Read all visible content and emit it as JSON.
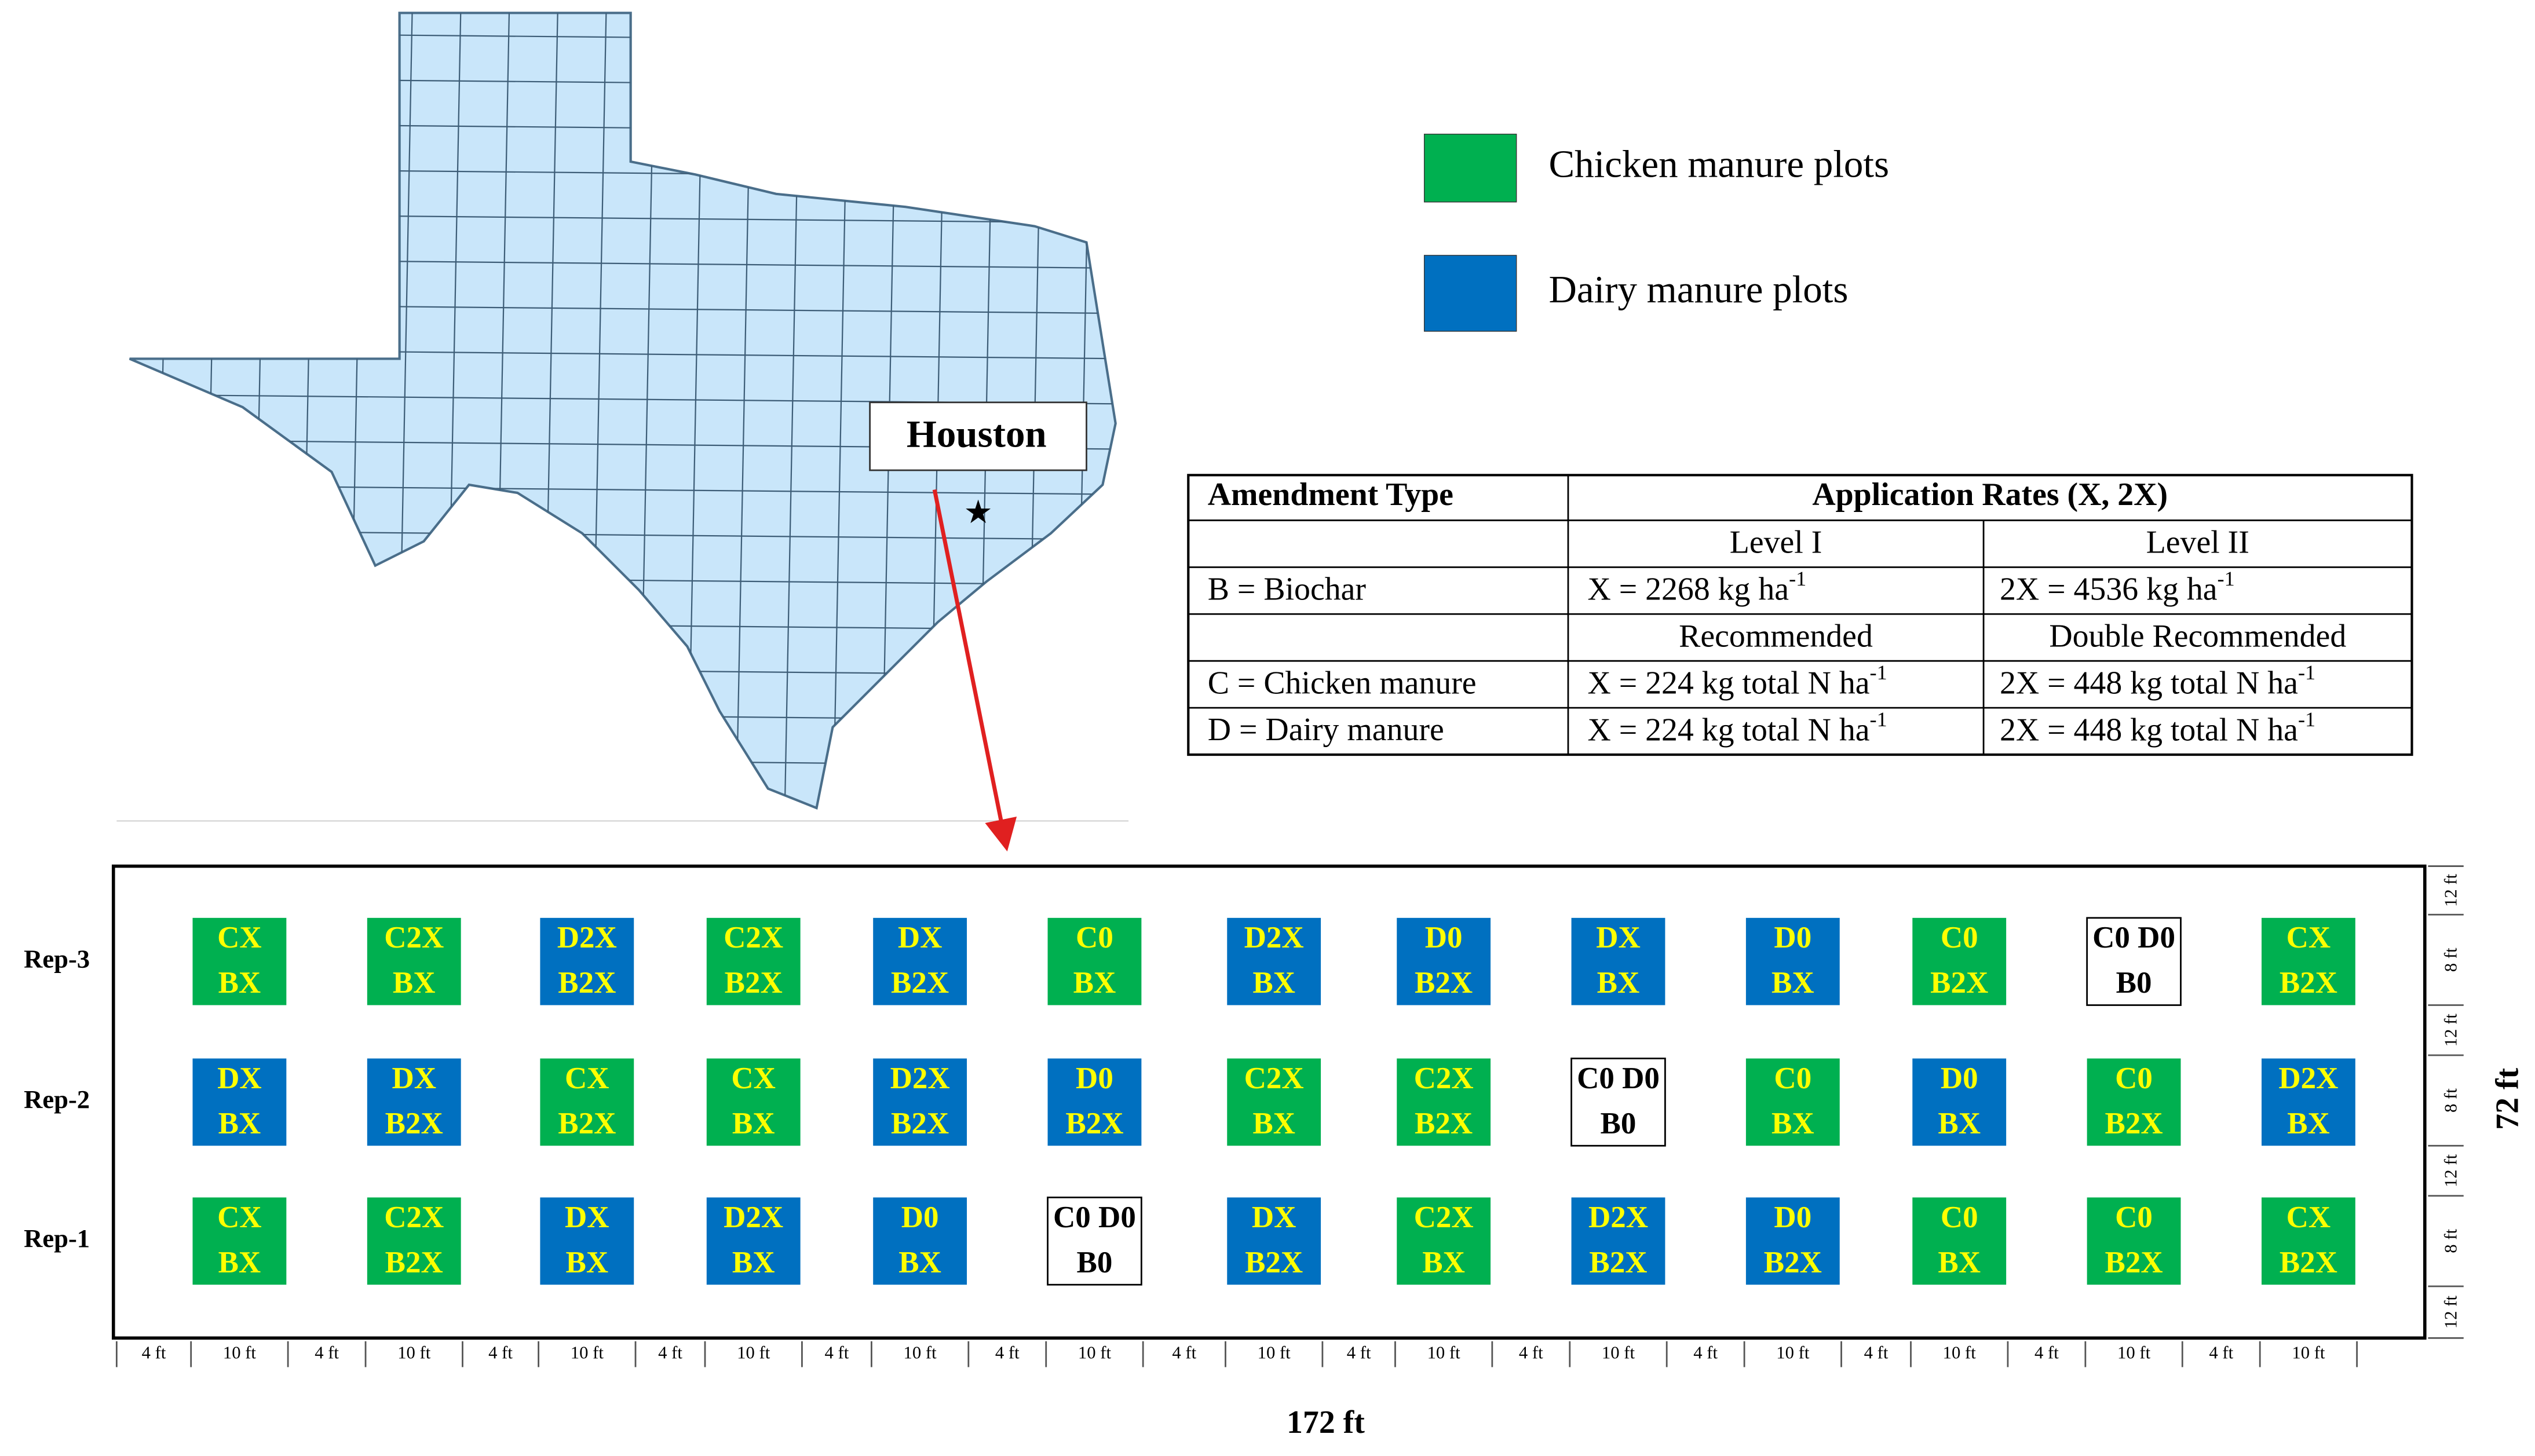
{
  "map": {
    "label": "Houston"
  },
  "legend": [
    {
      "label": "Chicken manure plots",
      "color": "#00b050"
    },
    {
      "label": "Dairy manure plots",
      "color": "#0070c0"
    }
  ],
  "table": {
    "header": [
      "Amendment Type",
      "Application Rates (X, 2X)"
    ],
    "rows": [
      {
        "level": [
          "Level I",
          "Level II"
        ]
      },
      {
        "amendment": "B = Biochar",
        "rates": [
          {
            "text": "X = 2268 kg ha",
            "sup": "-1"
          },
          {
            "text": "2X = 4536 kg ha",
            "sup": "-1"
          }
        ]
      },
      {
        "level": [
          "Recommended",
          "Double Recommended"
        ]
      },
      {
        "amendment": "C = Chicken manure",
        "rates": [
          {
            "text": "X = 224 kg total N ha",
            "sup": "-1"
          },
          {
            "text": "2X = 448 kg total N ha",
            "sup": "-1"
          }
        ]
      },
      {
        "amendment": "D = Dairy manure",
        "rates": [
          {
            "text": "X = 224 kg total N ha",
            "sup": "-1"
          },
          {
            "text": "2X = 448 kg total N ha",
            "sup": "-1"
          }
        ]
      }
    ]
  },
  "field": {
    "reps": [
      {
        "label": "Rep-3",
        "plots": [
          {
            "lines": [
              "CX",
              "BX"
            ],
            "kind": "chicken"
          },
          {
            "lines": [
              "C2X",
              "BX"
            ],
            "kind": "chicken"
          },
          {
            "lines": [
              "D2X",
              "B2X"
            ],
            "kind": "dairy"
          },
          {
            "lines": [
              "C2X",
              "B2X"
            ],
            "kind": "chicken"
          },
          {
            "lines": [
              "DX",
              "B2X"
            ],
            "kind": "dairy"
          },
          {
            "lines": [
              "C0",
              "BX"
            ],
            "kind": "chicken"
          },
          {
            "lines": [
              "D2X",
              "BX"
            ],
            "kind": "dairy"
          },
          {
            "lines": [
              "D0",
              "B2X"
            ],
            "kind": "dairy"
          },
          {
            "lines": [
              "DX",
              "BX"
            ],
            "kind": "dairy"
          },
          {
            "lines": [
              "D0",
              "BX"
            ],
            "kind": "dairy"
          },
          {
            "lines": [
              "C0",
              "B2X"
            ],
            "kind": "chicken"
          },
          {
            "lines": [
              "C0 D0",
              "B0"
            ],
            "kind": "control"
          },
          {
            "lines": [
              "CX",
              "B2X"
            ],
            "kind": "chicken"
          }
        ]
      },
      {
        "label": "Rep-2",
        "plots": [
          {
            "lines": [
              "DX",
              "BX"
            ],
            "kind": "dairy"
          },
          {
            "lines": [
              "DX",
              "B2X"
            ],
            "kind": "dairy"
          },
          {
            "lines": [
              "CX",
              "B2X"
            ],
            "kind": "chicken"
          },
          {
            "lines": [
              "CX",
              "BX"
            ],
            "kind": "chicken"
          },
          {
            "lines": [
              "D2X",
              "B2X"
            ],
            "kind": "dairy"
          },
          {
            "lines": [
              "D0",
              "B2X"
            ],
            "kind": "dairy"
          },
          {
            "lines": [
              "C2X",
              "BX"
            ],
            "kind": "chicken"
          },
          {
            "lines": [
              "C2X",
              "B2X"
            ],
            "kind": "chicken"
          },
          {
            "lines": [
              "C0 D0",
              "B0"
            ],
            "kind": "control"
          },
          {
            "lines": [
              "C0",
              "BX"
            ],
            "kind": "chicken"
          },
          {
            "lines": [
              "D0",
              "BX"
            ],
            "kind": "dairy"
          },
          {
            "lines": [
              "C0",
              "B2X"
            ],
            "kind": "chicken"
          },
          {
            "lines": [
              "D2X",
              "BX"
            ],
            "kind": "dairy"
          }
        ]
      },
      {
        "label": "Rep-1",
        "plots": [
          {
            "lines": [
              "CX",
              "BX"
            ],
            "kind": "chicken"
          },
          {
            "lines": [
              "C2X",
              "B2X"
            ],
            "kind": "chicken"
          },
          {
            "lines": [
              "DX",
              "BX"
            ],
            "kind": "dairy"
          },
          {
            "lines": [
              "D2X",
              "BX"
            ],
            "kind": "dairy"
          },
          {
            "lines": [
              "D0",
              "BX"
            ],
            "kind": "dairy"
          },
          {
            "lines": [
              "C0 D0",
              "B0"
            ],
            "kind": "control"
          },
          {
            "lines": [
              "DX",
              "B2X"
            ],
            "kind": "dairy"
          },
          {
            "lines": [
              "C2X",
              "BX"
            ],
            "kind": "chicken"
          },
          {
            "lines": [
              "D2X",
              "B2X"
            ],
            "kind": "dairy"
          },
          {
            "lines": [
              "D0",
              "B2X"
            ],
            "kind": "dairy"
          },
          {
            "lines": [
              "C0",
              "BX"
            ],
            "kind": "chicken"
          },
          {
            "lines": [
              "C0",
              "B2X"
            ],
            "kind": "chicken"
          },
          {
            "lines": [
              "CX",
              "B2X"
            ],
            "kind": "chicken"
          }
        ]
      }
    ],
    "gap_label": "4 ft",
    "plot_width_label": "10 ft",
    "y_dims": [
      "12 ft",
      "8 ft",
      "12 ft",
      "8 ft",
      "12 ft",
      "8 ft",
      "12 ft"
    ],
    "width_label": "172 ft",
    "height_label": "72 ft"
  }
}
